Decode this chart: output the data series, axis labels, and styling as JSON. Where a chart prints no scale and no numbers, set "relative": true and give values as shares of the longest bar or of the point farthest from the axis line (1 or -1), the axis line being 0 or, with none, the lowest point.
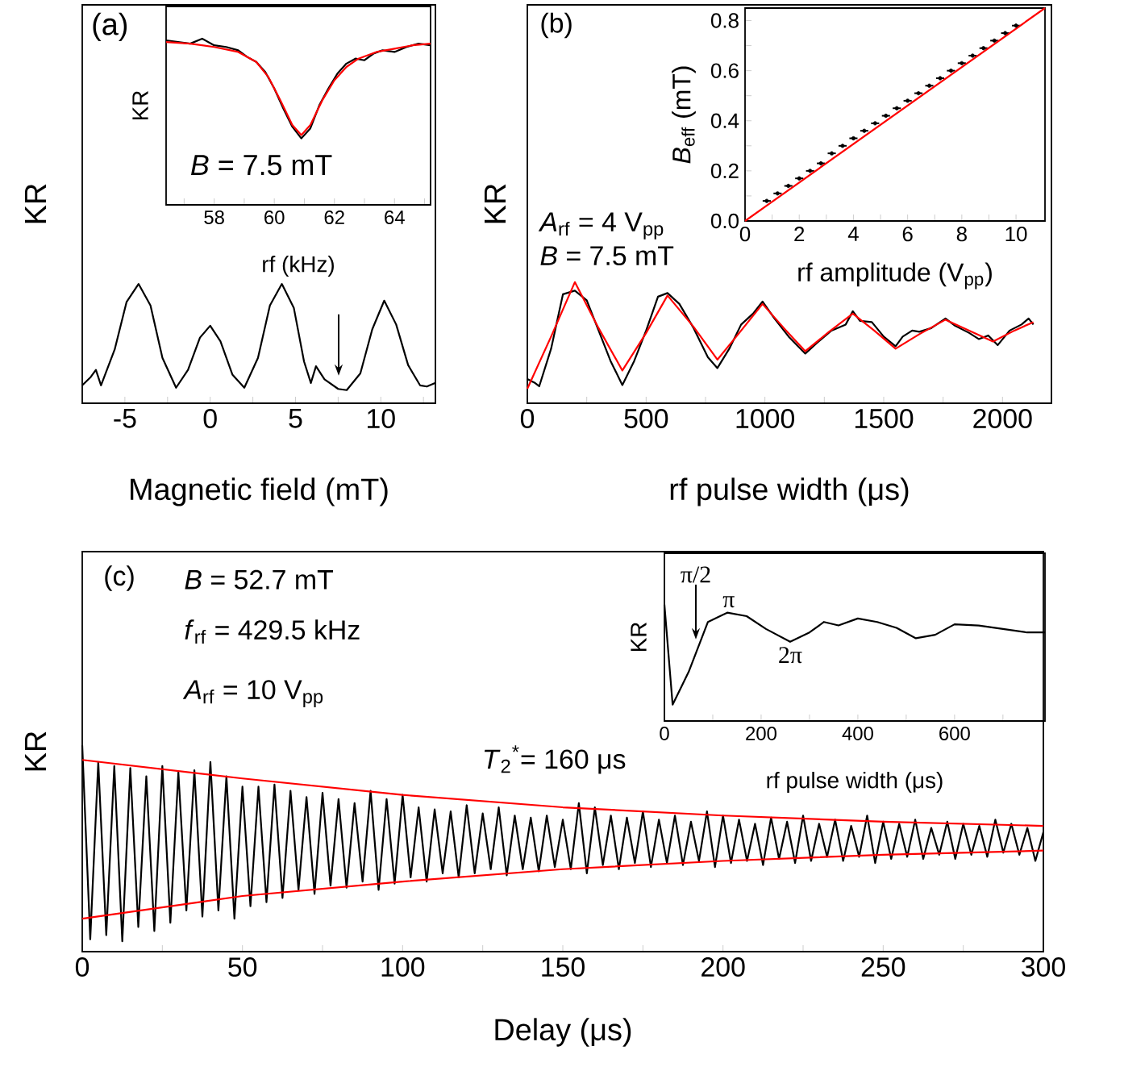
{
  "chart_data": [
    {
      "type": "line",
      "relative": true,
      "xlabel": "Magnetic field (mT)",
      "ylabel": "KR",
      "xlim": [
        -7.5,
        13.2
      ],
      "xticks": [
        -5,
        {
          "value": -2.5,
          "label": null
        },
        0,
        {
          "value": 2.5,
          "label": null
        },
        5,
        {
          "value": 7.5,
          "label": null
        },
        10,
        {
          "value": 12.5,
          "label": null
        }
      ],
      "annotations": [
        "(a)"
      ],
      "series": [
        {
          "color": "#000000",
          "x": [
            -7.5,
            -7.0,
            -6.7,
            -6.4,
            -5.6,
            -4.9,
            -4.2,
            -3.5,
            -2.8,
            -2.0,
            -1.3,
            -0.6,
            0,
            0.6,
            1.3,
            2.0,
            2.8,
            3.5,
            4.2,
            4.9,
            5.5,
            5.9,
            6.2,
            6.7,
            7.5,
            8.0,
            8.8,
            9.5,
            10.2,
            10.9,
            11.6,
            12.3,
            12.7,
            13.2
          ],
          "values": [
            0.15,
            0.22,
            0.28,
            0.15,
            0.45,
            0.85,
            1.0,
            0.82,
            0.38,
            0.13,
            0.28,
            0.55,
            0.65,
            0.52,
            0.24,
            0.13,
            0.38,
            0.82,
            1.0,
            0.8,
            0.35,
            0.17,
            0.31,
            0.2,
            0.12,
            0.11,
            0.25,
            0.62,
            0.86,
            0.66,
            0.32,
            0.15,
            0.14,
            0.17
          ]
        }
      ]
    },
    {
      "type": "line",
      "relative": true,
      "xlabel": "rf (kHz)",
      "ylabel": "KR",
      "xlim": [
        56.4,
        65.2
      ],
      "xticks": [
        {
          "value": 57,
          "label": null
        },
        58,
        {
          "value": 59,
          "label": null
        },
        60,
        {
          "value": 61,
          "label": null
        },
        62,
        {
          "value": 63,
          "label": null
        },
        64,
        {
          "value": 65,
          "label": null
        }
      ],
      "annotations": [
        "*B* = 7.5 mT"
      ],
      "series": [
        {
          "color": "#000000",
          "x": [
            56.4,
            56.8,
            57.2,
            57.6,
            58.0,
            58.4,
            58.8,
            59.1,
            59.4,
            59.7,
            60.0,
            60.3,
            60.6,
            60.9,
            61.2,
            61.5,
            61.8,
            62.1,
            62.4,
            62.7,
            63.0,
            63.3,
            63.6,
            64.0,
            64.4,
            64.8,
            65.2
          ],
          "values": [
            0.99,
            0.98,
            0.97,
            1.0,
            0.96,
            0.95,
            0.93,
            0.89,
            0.86,
            0.8,
            0.7,
            0.58,
            0.47,
            0.4,
            0.46,
            0.6,
            0.7,
            0.79,
            0.85,
            0.88,
            0.87,
            0.91,
            0.93,
            0.92,
            0.95,
            0.97,
            0.96
          ]
        },
        {
          "color": "#ff0000",
          "x": [
            56.4,
            57.2,
            58.0,
            58.8,
            59.4,
            59.8,
            60.2,
            60.6,
            60.9,
            61.2,
            61.6,
            62.0,
            62.4,
            62.8,
            63.4,
            64.0,
            64.6,
            65.2
          ],
          "values": [
            0.98,
            0.97,
            0.95,
            0.92,
            0.86,
            0.77,
            0.63,
            0.48,
            0.42,
            0.48,
            0.63,
            0.75,
            0.83,
            0.88,
            0.92,
            0.94,
            0.96,
            0.97
          ]
        }
      ]
    },
    {
      "type": "line",
      "relative": true,
      "xlabel": "rf pulse width (μs)",
      "ylabel": "KR",
      "xlim": [
        0,
        2206
      ],
      "xticks": [
        0,
        {
          "value": 250,
          "label": null
        },
        500,
        {
          "value": 750,
          "label": null
        },
        1000,
        {
          "value": 1250,
          "label": null
        },
        1500,
        {
          "value": 1750,
          "label": null
        },
        2000
      ],
      "annotations": [
        "(b)",
        "*A*$_{rf}$ = 4 V$_{pp}$",
        "*B* = 7.5 mT"
      ],
      "series": [
        {
          "color": "#000000",
          "x": [
            0,
            30,
            50,
            100,
            150,
            200,
            250,
            300,
            350,
            400,
            450,
            500,
            550,
            590,
            640,
            700,
            760,
            800,
            850,
            900,
            950,
            990,
            1040,
            1100,
            1150,
            1170,
            1220,
            1280,
            1340,
            1370,
            1400,
            1450,
            1500,
            1550,
            1580,
            1620,
            1650,
            1700,
            1760,
            1800,
            1860,
            1900,
            1940,
            1980,
            2030,
            2080,
            2110,
            2130
          ],
          "values": [
            0.2,
            0.17,
            0.14,
            0.45,
            0.9,
            0.93,
            0.85,
            0.6,
            0.35,
            0.15,
            0.35,
            0.6,
            0.88,
            0.91,
            0.82,
            0.62,
            0.38,
            0.29,
            0.45,
            0.65,
            0.74,
            0.84,
            0.7,
            0.55,
            0.45,
            0.41,
            0.5,
            0.6,
            0.65,
            0.76,
            0.68,
            0.67,
            0.55,
            0.47,
            0.55,
            0.6,
            0.59,
            0.62,
            0.7,
            0.64,
            0.58,
            0.53,
            0.56,
            0.48,
            0.6,
            0.65,
            0.7,
            0.65
          ]
        },
        {
          "color": "#ff0000",
          "x": [
            0,
            100,
            200,
            300,
            400,
            500,
            590,
            700,
            800,
            900,
            990,
            1080,
            1170,
            1270,
            1370,
            1460,
            1550,
            1650,
            1760,
            1860,
            1960,
            2050,
            2130
          ],
          "values": [
            0.12,
            0.55,
            1.0,
            0.62,
            0.27,
            0.58,
            0.89,
            0.63,
            0.36,
            0.6,
            0.82,
            0.62,
            0.43,
            0.59,
            0.74,
            0.6,
            0.45,
            0.57,
            0.69,
            0.6,
            0.51,
            0.6,
            0.67
          ]
        }
      ]
    },
    {
      "type": "scatter",
      "xlabel": "rf amplitude (V$_{pp}$)",
      "ylabel": "*B*$_{eff}$ (mT)",
      "xlim": [
        0,
        11.07
      ],
      "ylim": [
        0,
        0.85
      ],
      "xticks": [
        0,
        {
          "value": 1,
          "label": null
        },
        2,
        {
          "value": 3,
          "label": null
        },
        4,
        {
          "value": 5,
          "label": null
        },
        6,
        {
          "value": 7,
          "label": null
        },
        8,
        {
          "value": 9,
          "label": null
        },
        10
      ],
      "yticks": [
        {
          "value": 0,
          "label": "0.0"
        },
        {
          "value": 0.1,
          "label": null
        },
        0.2,
        {
          "value": 0.3,
          "label": null
        },
        0.4,
        {
          "value": 0.5,
          "label": null
        },
        0.6,
        {
          "value": 0.7,
          "label": null
        },
        0.8
      ],
      "series": [
        {
          "color": "#000000",
          "x": [
            0.8,
            1.2,
            1.6,
            2.0,
            2.4,
            2.8,
            3.2,
            3.6,
            4.0,
            4.4,
            4.8,
            5.2,
            5.6,
            6.0,
            6.4,
            6.8,
            7.2,
            7.6,
            8.0,
            8.4,
            8.8,
            9.2,
            9.6,
            10.0
          ],
          "values": [
            0.08,
            0.11,
            0.14,
            0.17,
            0.2,
            0.23,
            0.27,
            0.3,
            0.33,
            0.36,
            0.39,
            0.42,
            0.45,
            0.48,
            0.51,
            0.54,
            0.57,
            0.6,
            0.63,
            0.66,
            0.69,
            0.72,
            0.75,
            0.78
          ],
          "xerrors": [
            0.15,
            0.15,
            0.15,
            0.15,
            0.15,
            0.15,
            0.15,
            0.15,
            0.15,
            0.15,
            0.15,
            0.15,
            0.15,
            0.15,
            0.15,
            0.15,
            0.15,
            0.15,
            0.15,
            0.15,
            0.15,
            0.15,
            0.15,
            0.15
          ]
        },
        {
          "type": "line",
          "color": "#ff0000",
          "x": [
            0,
            11.07
          ],
          "values": [
            0,
            0.85
          ]
        }
      ]
    },
    {
      "type": "line",
      "relative": true,
      "xlabel": "Delay (μs)",
      "ylabel": "KR",
      "xlim": [
        0,
        300
      ],
      "xticks": [
        0,
        {
          "value": 25,
          "label": null
        },
        50,
        {
          "value": 75,
          "label": null
        },
        100,
        {
          "value": 125,
          "label": null
        },
        150,
        {
          "value": 175,
          "label": null
        },
        200,
        {
          "value": 225,
          "label": null
        },
        250,
        {
          "value": 275,
          "label": null
        },
        300
      ],
      "annotations": [
        "(c)",
        "*B* = 52.7 mT",
        "*f*$_{rf}$ = 429.5 kHz",
        "*A*$_{rf}$ = 10 V$_{pp}$",
        "*T*$_{2}$$^{*}$= 160 μs"
      ],
      "x": [
        0,
        2.5,
        5,
        7.5,
        10,
        12.5,
        15,
        17.5,
        20,
        22.5,
        25,
        27.5,
        30,
        32.5,
        35,
        37.5,
        40,
        42.5,
        45,
        47.5,
        50,
        52.5,
        55,
        57.5,
        60,
        62.5,
        65,
        67.5,
        70,
        72.5,
        75,
        77.5,
        80,
        82.5,
        85,
        87.5,
        90,
        92.5,
        95,
        97.5,
        100,
        102.5,
        105,
        107.5,
        110,
        112.5,
        115,
        117.5,
        120,
        122.5,
        125,
        127.5,
        130,
        132.5,
        135,
        137.5,
        140,
        142.5,
        145,
        147.5,
        150,
        152.5,
        155,
        157.5,
        160,
        162.5,
        165,
        167.5,
        170,
        172.5,
        175,
        177.5,
        180,
        182.5,
        185,
        187.5,
        190,
        192.5,
        195,
        197.5,
        200,
        202.5,
        205,
        207.5,
        210,
        212.5,
        215,
        217.5,
        220,
        222.5,
        225,
        227.5,
        230,
        232.5,
        235,
        237.5,
        240,
        242.5,
        245,
        247.5,
        250,
        252.5,
        255,
        257.5,
        260,
        262.5,
        265,
        267.5,
        270,
        272.5,
        275,
        277.5,
        280,
        282.5,
        285,
        287.5,
        290,
        292.5,
        295,
        297.5,
        300
      ],
      "series": [
        {
          "color": "#000000",
          "values": [
            1.0,
            0.06,
            0.92,
            0.08,
            0.9,
            0.05,
            0.89,
            0.12,
            0.85,
            0.1,
            0.9,
            0.14,
            0.87,
            0.2,
            0.88,
            0.17,
            0.92,
            0.2,
            0.85,
            0.16,
            0.8,
            0.22,
            0.8,
            0.24,
            0.81,
            0.26,
            0.78,
            0.3,
            0.75,
            0.28,
            0.77,
            0.32,
            0.74,
            0.31,
            0.72,
            0.34,
            0.78,
            0.3,
            0.74,
            0.33,
            0.76,
            0.36,
            0.7,
            0.34,
            0.69,
            0.38,
            0.68,
            0.36,
            0.71,
            0.38,
            0.67,
            0.4,
            0.7,
            0.37,
            0.66,
            0.4,
            0.65,
            0.39,
            0.66,
            0.41,
            0.64,
            0.4,
            0.72,
            0.38,
            0.7,
            0.42,
            0.66,
            0.4,
            0.65,
            0.43,
            0.68,
            0.41,
            0.64,
            0.43,
            0.66,
            0.42,
            0.63,
            0.44,
            0.68,
            0.41,
            0.66,
            0.43,
            0.64,
            0.44,
            0.62,
            0.42,
            0.65,
            0.45,
            0.63,
            0.43,
            0.66,
            0.44,
            0.62,
            0.46,
            0.64,
            0.44,
            0.61,
            0.46,
            0.66,
            0.43,
            0.63,
            0.45,
            0.62,
            0.46,
            0.64,
            0.45,
            0.6,
            0.47,
            0.63,
            0.45,
            0.62,
            0.47,
            0.61,
            0.46,
            0.64,
            0.48,
            0.62,
            0.47,
            0.6,
            0.44,
            0.58
          ]
        },
        {
          "color": "#ff0000",
          "x": [
            0,
            50,
            100,
            150,
            200,
            250,
            300
          ],
          "values": [
            0.93,
            0.84,
            0.76,
            0.7,
            0.66,
            0.63,
            0.61
          ]
        },
        {
          "color": "#ff0000",
          "x": [
            0,
            50,
            100,
            150,
            200,
            250,
            300
          ],
          "values": [
            0.16,
            0.27,
            0.34,
            0.4,
            0.44,
            0.47,
            0.49
          ]
        }
      ]
    },
    {
      "type": "line",
      "relative": true,
      "xlabel": "rf pulse width (μs)",
      "ylabel": "KR",
      "xlim": [
        0,
        787
      ],
      "xticks": [
        0,
        {
          "value": 100,
          "label": null
        },
        200,
        {
          "value": 300,
          "label": null
        },
        400,
        {
          "value": 500,
          "label": null
        },
        600,
        {
          "value": 700,
          "label": null
        }
      ],
      "annotations": [
        {
          "text": "π/2",
          "x": 65,
          "y": 0.7
        },
        {
          "text": "π",
          "x": 133,
          "y": 0.93
        },
        {
          "text": "2π",
          "x": 260,
          "y": 0.68
        }
      ],
      "series": [
        {
          "color": "#000000",
          "x": [
            0,
            17,
            50,
            90,
            130,
            170,
            210,
            260,
            300,
            330,
            360,
            400,
            440,
            480,
            520,
            560,
            600,
            650,
            700,
            750,
            787
          ],
          "values": [
            1.0,
            0.14,
            0.42,
            0.85,
            0.93,
            0.9,
            0.79,
            0.68,
            0.76,
            0.85,
            0.82,
            0.88,
            0.85,
            0.8,
            0.71,
            0.74,
            0.83,
            0.82,
            0.79,
            0.76,
            0.76
          ]
        }
      ]
    }
  ]
}
